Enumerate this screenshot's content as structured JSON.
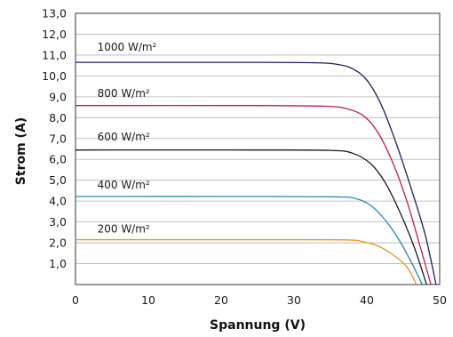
{
  "chart_data": {
    "type": "line",
    "xlabel": "Spannung (V)",
    "ylabel": "Strom (A)",
    "xlim": [
      0,
      50
    ],
    "ylim": [
      0,
      13
    ],
    "grid": "horizontal",
    "x_ticks": [
      0,
      10,
      20,
      30,
      40,
      50
    ],
    "y_ticks": [
      "13,0",
      "12,0",
      "11,0",
      "10,0",
      "9,0",
      "8,0",
      "7,0",
      "6,0",
      "5,0",
      "4,0",
      "3,0",
      "2,0",
      "1,0"
    ],
    "series": [
      {
        "name": "1000 W/m²",
        "color": "#1f1d5e",
        "label_position": {
          "x": 3,
          "y": 11.2
        },
        "points": [
          [
            0,
            10.65
          ],
          [
            25,
            10.65
          ],
          [
            33,
            10.63
          ],
          [
            36,
            10.55
          ],
          [
            38,
            10.35
          ],
          [
            40,
            9.8
          ],
          [
            42,
            8.6
          ],
          [
            44,
            6.8
          ],
          [
            46,
            4.7
          ],
          [
            48,
            2.4
          ],
          [
            49.5,
            0.0
          ]
        ]
      },
      {
        "name": "800 W/m²",
        "color": "#c2185b",
        "label_position": {
          "x": 3,
          "y": 9.0
        },
        "points": [
          [
            0,
            8.58
          ],
          [
            25,
            8.58
          ],
          [
            34,
            8.55
          ],
          [
            37,
            8.45
          ],
          [
            39.5,
            8.1
          ],
          [
            41.5,
            7.3
          ],
          [
            43.5,
            5.9
          ],
          [
            45.5,
            4.0
          ],
          [
            47.5,
            1.6
          ],
          [
            48.8,
            0.0
          ]
        ]
      },
      {
        "name": "600 W/m²",
        "color": "#1a1a1a",
        "label_position": {
          "x": 3,
          "y": 6.9
        },
        "points": [
          [
            0,
            6.45
          ],
          [
            25,
            6.45
          ],
          [
            35,
            6.43
          ],
          [
            38,
            6.3
          ],
          [
            40.5,
            5.8
          ],
          [
            42.5,
            4.9
          ],
          [
            44.5,
            3.5
          ],
          [
            46.5,
            1.8
          ],
          [
            48.2,
            0.0
          ]
        ]
      },
      {
        "name": "400 W/m²",
        "color": "#2a86b8",
        "label_position": {
          "x": 3,
          "y": 4.6
        },
        "points": [
          [
            0,
            4.22
          ],
          [
            25,
            4.22
          ],
          [
            36,
            4.2
          ],
          [
            38.5,
            4.12
          ],
          [
            40.5,
            3.8
          ],
          [
            42.5,
            3.1
          ],
          [
            44.5,
            2.1
          ],
          [
            46.5,
            0.8
          ],
          [
            47.6,
            0.0
          ]
        ]
      },
      {
        "name": "200 W/m²",
        "color": "#e8951d",
        "label_position": {
          "x": 3,
          "y": 2.5
        },
        "points": [
          [
            0,
            2.15
          ],
          [
            25,
            2.15
          ],
          [
            37,
            2.14
          ],
          [
            39.5,
            2.05
          ],
          [
            41.5,
            1.85
          ],
          [
            43.5,
            1.45
          ],
          [
            45.5,
            0.85
          ],
          [
            46.8,
            0.0
          ]
        ]
      }
    ]
  }
}
